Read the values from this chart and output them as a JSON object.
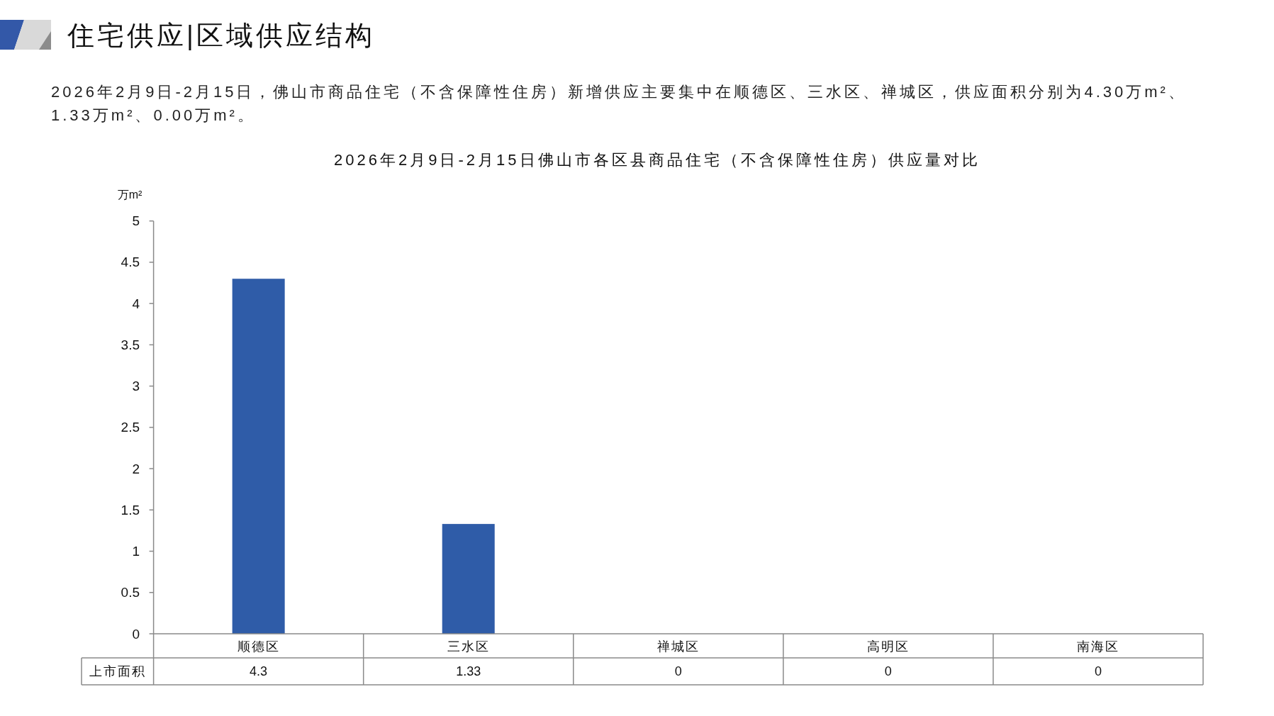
{
  "chart_data": {
    "type": "bar",
    "title": "住宅供应|区域供应结构",
    "subtitle": "2026年2月9日-2月15日佛山市各区县商品住宅（不含保障性住房）供应量对比",
    "annotations": [
      "2026年2月9日-2月15日，佛山市商品住宅（不含保障性住房）新增供应主要集中在顺德区、三水区、禅城区，供应面积分别为4.30万m²、1.33万m²、0.00万m²。"
    ],
    "ylabel": "万m²",
    "categories": [
      "顺德区",
      "三水区",
      "禅城区",
      "高明区",
      "南海区"
    ],
    "series": [
      {
        "name": "上市面积",
        "color": "#2f5ca8",
        "values": [
          4.3,
          1.33,
          0,
          0,
          0
        ]
      }
    ],
    "ylim": [
      0,
      5
    ],
    "yticks": [
      0,
      0.5,
      1,
      1.5,
      2,
      2.5,
      3,
      3.5,
      4,
      4.5,
      5
    ],
    "data_labels": true
  }
}
